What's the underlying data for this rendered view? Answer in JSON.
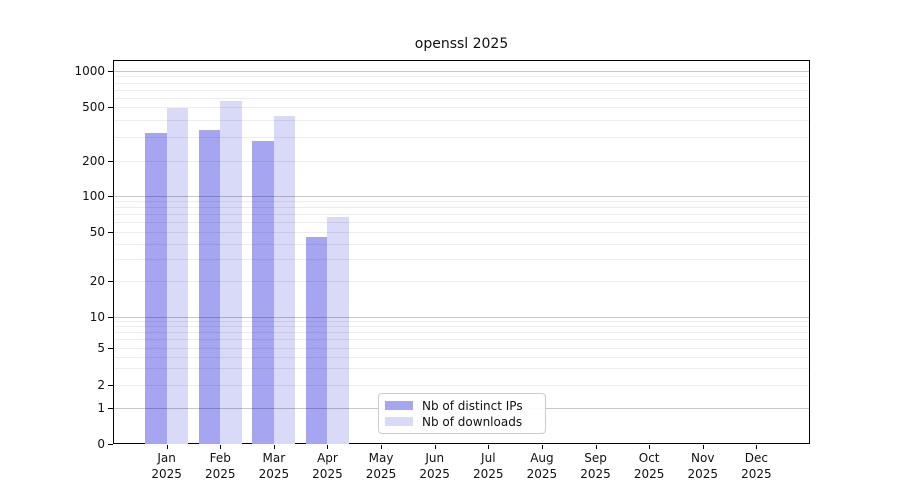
{
  "title": "openssl 2025",
  "chart_data": {
    "type": "bar",
    "title": "openssl 2025",
    "categories": [
      "Jan 2025",
      "Feb 2025",
      "Mar 2025",
      "Apr 2025",
      "May 2025",
      "Jun 2025",
      "Jul 2025",
      "Aug 2025",
      "Sep 2025",
      "Oct 2025",
      "Nov 2025",
      "Dec 2025"
    ],
    "series": [
      {
        "name": "Nb of distinct IPs",
        "color": "#a5a5f2",
        "values": [
          320,
          340,
          280,
          45,
          null,
          null,
          null,
          null,
          null,
          null,
          null,
          null
        ]
      },
      {
        "name": "Nb of downloads",
        "color": "#d9d9f8",
        "values": [
          490,
          560,
          430,
          66,
          null,
          null,
          null,
          null,
          null,
          null,
          null,
          null
        ]
      }
    ],
    "yscale": "symlog",
    "yticks": [
      0,
      1,
      2,
      5,
      10,
      20,
      50,
      100,
      200,
      500,
      1000
    ],
    "ylim": [
      0,
      1200
    ],
    "grid": true,
    "legend_position": "lower center"
  },
  "x_axis": {
    "months": [
      "Jan",
      "Feb",
      "Mar",
      "Apr",
      "May",
      "Jun",
      "Jul",
      "Aug",
      "Sep",
      "Oct",
      "Nov",
      "Dec"
    ],
    "year": "2025"
  },
  "legend": {
    "items": [
      {
        "label": "Nb of distinct IPs",
        "color": "#a5a5f2"
      },
      {
        "label": "Nb of downloads",
        "color": "#d9d9f8"
      }
    ]
  }
}
